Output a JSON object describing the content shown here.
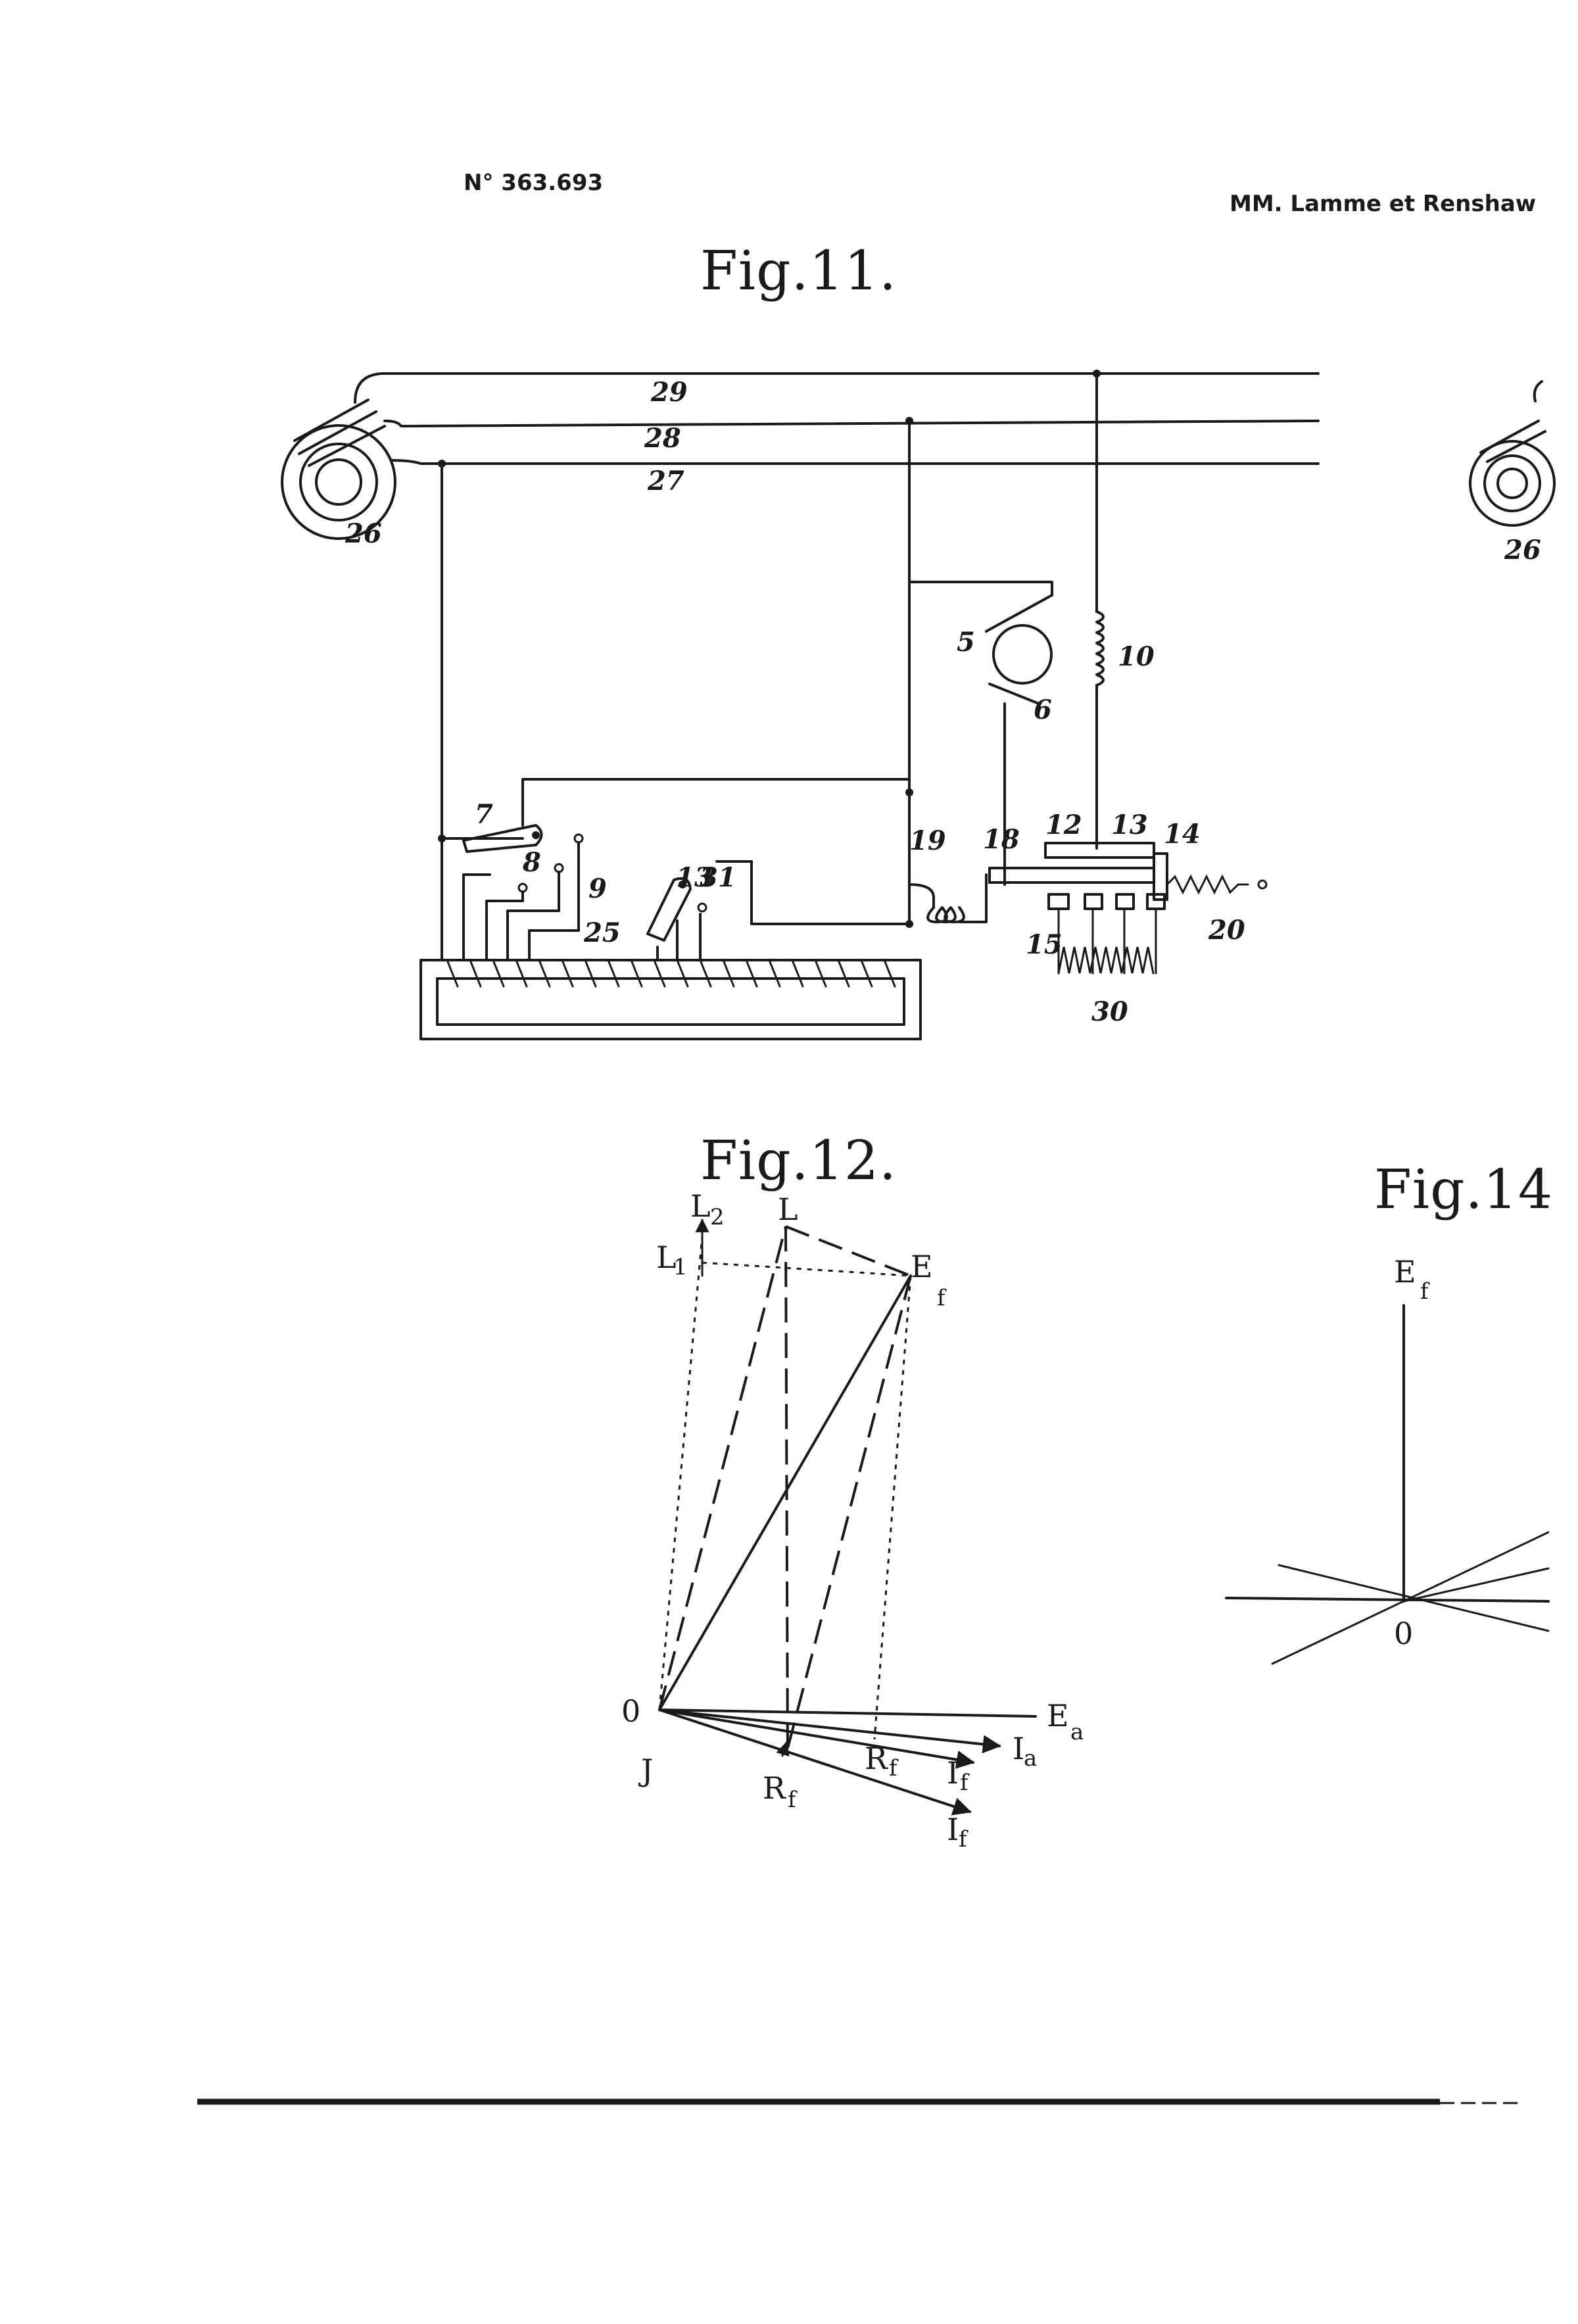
{
  "header": {
    "patent_number": "N° 363.693",
    "inventors": "MM. Lamme et Renshaw"
  },
  "fig11": {
    "title": "Fig.11.",
    "labels": {
      "n29": "29",
      "n28": "28",
      "n27": "27",
      "n26": "26",
      "n26b": "26",
      "n5": "5",
      "n6": "6",
      "n10": "10",
      "n7": "7",
      "n8": "8",
      "n9": "9",
      "n25": "25",
      "n13a": "13",
      "n31": "31",
      "n19": "19",
      "n18": "18",
      "n12": "12",
      "n13": "13",
      "n14": "14",
      "n20": "20",
      "n15": "15",
      "n30": "30"
    }
  },
  "fig12": {
    "title": "Fig.12.",
    "labels": {
      "L2": "L",
      "L2_sub": "2",
      "L": "L",
      "L1": "L",
      "L1_sub": "1",
      "Ef": "E",
      "Ef_sub": "f",
      "O": "0",
      "J": "J",
      "Ea": "E",
      "Ea_sub": "a",
      "Ia": "I",
      "Ia_sub": "a",
      "Rf": "R",
      "Rf_sub": "f",
      "Rf2": "R",
      "Rf2_sub": "f",
      "If2": "I",
      "If2_sub": "f",
      "If": "I",
      "If_sub": "f"
    }
  },
  "fig14": {
    "title": "Fig.14",
    "labels": {
      "Ef": "E",
      "Ef_sub": "f",
      "O": "0"
    }
  }
}
